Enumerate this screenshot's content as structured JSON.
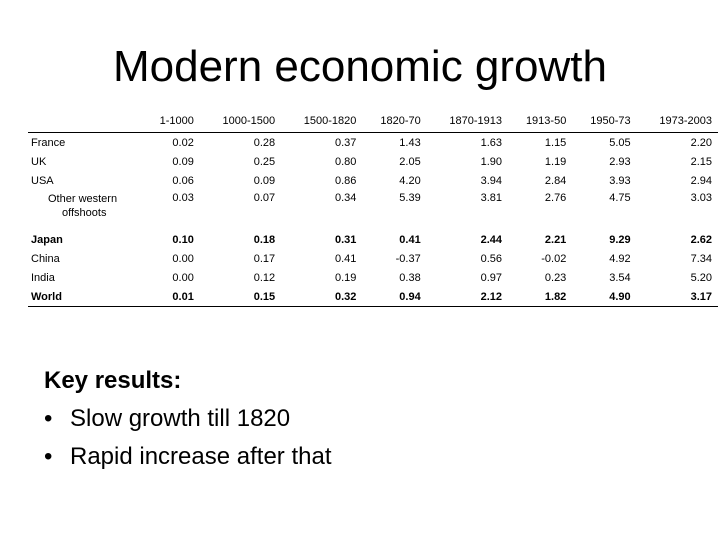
{
  "slide": {
    "title": "Modern economic growth"
  },
  "table": {
    "columns": [
      "1-1000",
      "1000-1500",
      "1500-1820",
      "1820-70",
      "1870-1913",
      "1913-50",
      "1950-73",
      "1973-2003"
    ],
    "rows": [
      {
        "label": "France",
        "label_sub": "",
        "values": [
          "0.02",
          "0.28",
          "0.37",
          "1.43",
          "1.63",
          "1.15",
          "5.05",
          "2.20"
        ],
        "bold": false
      },
      {
        "label": "UK",
        "label_sub": "",
        "values": [
          "0.09",
          "0.25",
          "0.80",
          "2.05",
          "1.90",
          "1.19",
          "2.93",
          "2.15"
        ],
        "bold": false
      },
      {
        "label": "USA",
        "label_sub": "",
        "values": [
          "0.06",
          "0.09",
          "0.86",
          "4.20",
          "3.94",
          "2.84",
          "3.93",
          "2.94"
        ],
        "bold": false
      },
      {
        "label": "Other western",
        "label_sub": "offshoots",
        "values": [
          "0.03",
          "0.07",
          "0.34",
          "5.39",
          "3.81",
          "2.76",
          "4.75",
          "3.03"
        ],
        "bold": false
      },
      {
        "label": "Japan",
        "label_sub": "",
        "values": [
          "0.10",
          "0.18",
          "0.31",
          "0.41",
          "2.44",
          "2.21",
          "9.29",
          "2.62"
        ],
        "bold": true
      },
      {
        "label": "China",
        "label_sub": "",
        "values": [
          "0.00",
          "0.17",
          "0.41",
          "-0.37",
          "0.56",
          "-0.02",
          "4.92",
          "7.34"
        ],
        "bold": false
      },
      {
        "label": "India",
        "label_sub": "",
        "values": [
          "0.00",
          "0.12",
          "0.19",
          "0.38",
          "0.97",
          "0.23",
          "3.54",
          "5.20"
        ],
        "bold": false
      },
      {
        "label": "World",
        "label_sub": "",
        "values": [
          "0.01",
          "0.15",
          "0.32",
          "0.94",
          "2.12",
          "1.82",
          "4.90",
          "3.17"
        ],
        "bold": true
      }
    ]
  },
  "key_results": {
    "heading": "Key results:",
    "bullet_char": "•",
    "bullets": [
      "Slow growth till 1820",
      "Rapid increase after that"
    ]
  }
}
